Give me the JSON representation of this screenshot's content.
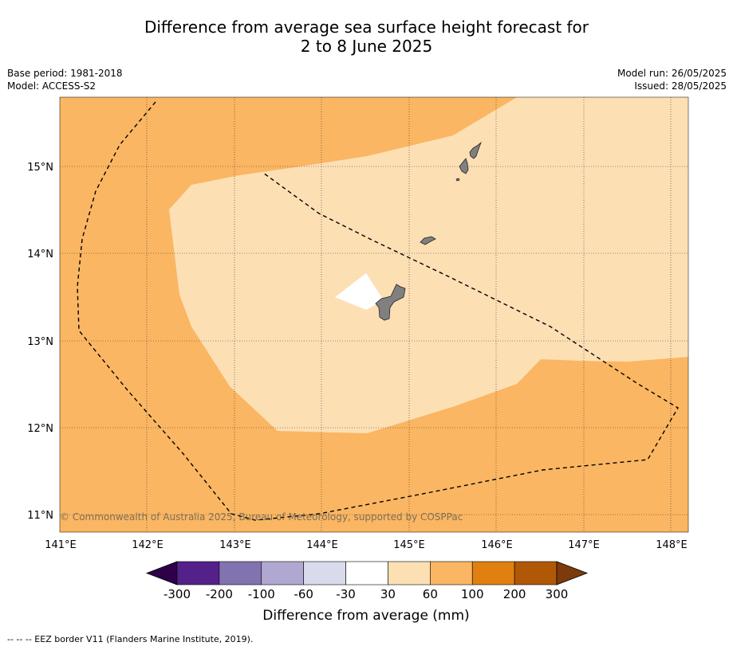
{
  "title": {
    "line1": "Difference from average sea surface height forecast for",
    "line2": "2 to 8 June 2025"
  },
  "meta_left": {
    "base_period": "Base period: 1981-2018",
    "model": "Model: ACCESS-S2"
  },
  "meta_right": {
    "model_run": "Model run: 26/05/2025",
    "issued": "Issued: 28/05/2025"
  },
  "map": {
    "lat_ticks": [
      "15°N",
      "14°N",
      "13°N",
      "12°N",
      "11°N"
    ],
    "lon_ticks": [
      "141°E",
      "142°E",
      "143°E",
      "144°E",
      "145°E",
      "146°E",
      "147°E",
      "148°E"
    ],
    "lon_range": [
      141,
      148.2
    ],
    "lat_range": [
      10.8,
      15.8
    ],
    "categories_shown": [
      "30 to 60",
      "60 to 100"
    ],
    "copyright": "© Commonwealth of Australia 2025, Bureau of Meteorology, supported by COSPPac"
  },
  "colorbar": {
    "title": "Difference from average (mm)",
    "labels": [
      "-300",
      "-200",
      "-100",
      "-60",
      "-30",
      "30",
      "60",
      "100",
      "200",
      "300"
    ],
    "colors": [
      "#54218a",
      "#8272b0",
      "#b1a8d2",
      "#d9daec",
      "#ffffff",
      "#fddfb4",
      "#fab662",
      "#e08010",
      "#b15806"
    ],
    "under_color": "#2d0048",
    "over_color": "#7d3b0c"
  },
  "colors": {
    "land": "#808080",
    "eez_line": "#000000",
    "grid": "#333333"
  },
  "footer": "-- -- -- EEZ border V11 (Flanders Marine Institute, 2019)."
}
